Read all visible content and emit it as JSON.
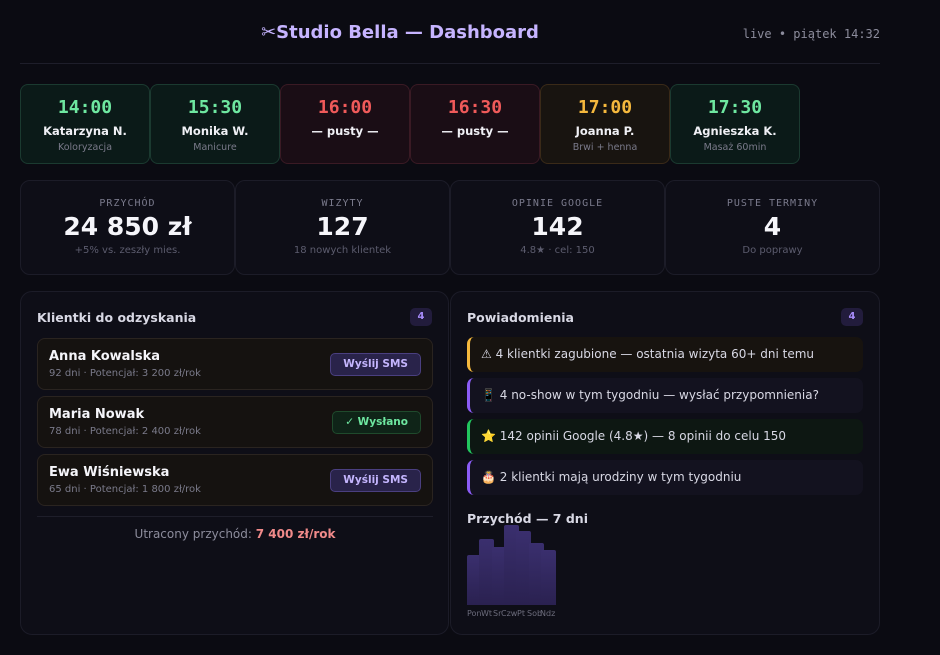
{
  "header": {
    "title": "✂Studio Bella — Dashboard",
    "live": "live • piątek 14:32"
  },
  "slots": [
    {
      "time": "14:00",
      "name": "Katarzyna N.",
      "service": "Koloryzacja",
      "status": "green"
    },
    {
      "time": "15:30",
      "name": "Monika W.",
      "service": "Manicure",
      "status": "green"
    },
    {
      "time": "16:00",
      "name": "— pusty —",
      "service": "",
      "status": "red"
    },
    {
      "time": "16:30",
      "name": "— pusty —",
      "service": "",
      "status": "red"
    },
    {
      "time": "17:00",
      "name": "Joanna P.",
      "service": "Brwi + henna",
      "status": "orange"
    },
    {
      "time": "17:30",
      "name": "Agnieszka K.",
      "service": "Masaż 60min",
      "status": "green"
    }
  ],
  "stats": [
    {
      "label": "PRZYCHÓD",
      "value": "24 850 zł",
      "sub": "+5% vs. zeszły mies."
    },
    {
      "label": "WIZYTY",
      "value": "127",
      "sub": "18 nowych klientek"
    },
    {
      "label": "OPINIE GOOGLE",
      "value": "142",
      "sub": "4.8★ · cel: 150"
    },
    {
      "label": "PUSTE TERMINY",
      "value": "4",
      "sub": "Do poprawy"
    }
  ],
  "clients_panel": {
    "title": "Klientki do odzyskania",
    "badge": "4",
    "clients": [
      {
        "name": "Anna Kowalska",
        "meta": "92 dni · Potencjał: 3 200 zł/rok",
        "action": "Wyślij SMS",
        "sent": false
      },
      {
        "name": "Maria Nowak",
        "meta": "78 dni · Potencjał: 2 400 zł/rok",
        "action": "✓ Wysłano",
        "sent": true
      },
      {
        "name": "Ewa Wiśniewska",
        "meta": "65 dni · Potencjał: 1 800 zł/rok",
        "action": "Wyślij SMS",
        "sent": false
      }
    ],
    "lost_label": "Utracony przychód: ",
    "lost_value": "7 400 zł/rok"
  },
  "notifications_panel": {
    "title": "Powiadomienia",
    "badge": "4",
    "items": [
      "⚠ 4 klientki zagubione — ostatnia wizyta 60+ dni temu",
      "📱 4 no-show w tym tygodniu — wysłać przypomnienia?",
      "⭐ 142 opinii Google (4.8★) — 8 opinii do celu 150",
      "🎂 2 klientki mają urodziny w tym tygodniu"
    ],
    "revenue_title": "Przychód — 7 dni"
  },
  "chart_data": {
    "type": "bar",
    "title": "Przychód — 7 dni",
    "categories": [
      "Pon",
      "Wt",
      "Sr",
      "Czw",
      "Pt",
      "Sob",
      "Ndz"
    ],
    "values": [
      0.62,
      0.82,
      0.72,
      1.0,
      0.92,
      0.77,
      0.69
    ]
  }
}
